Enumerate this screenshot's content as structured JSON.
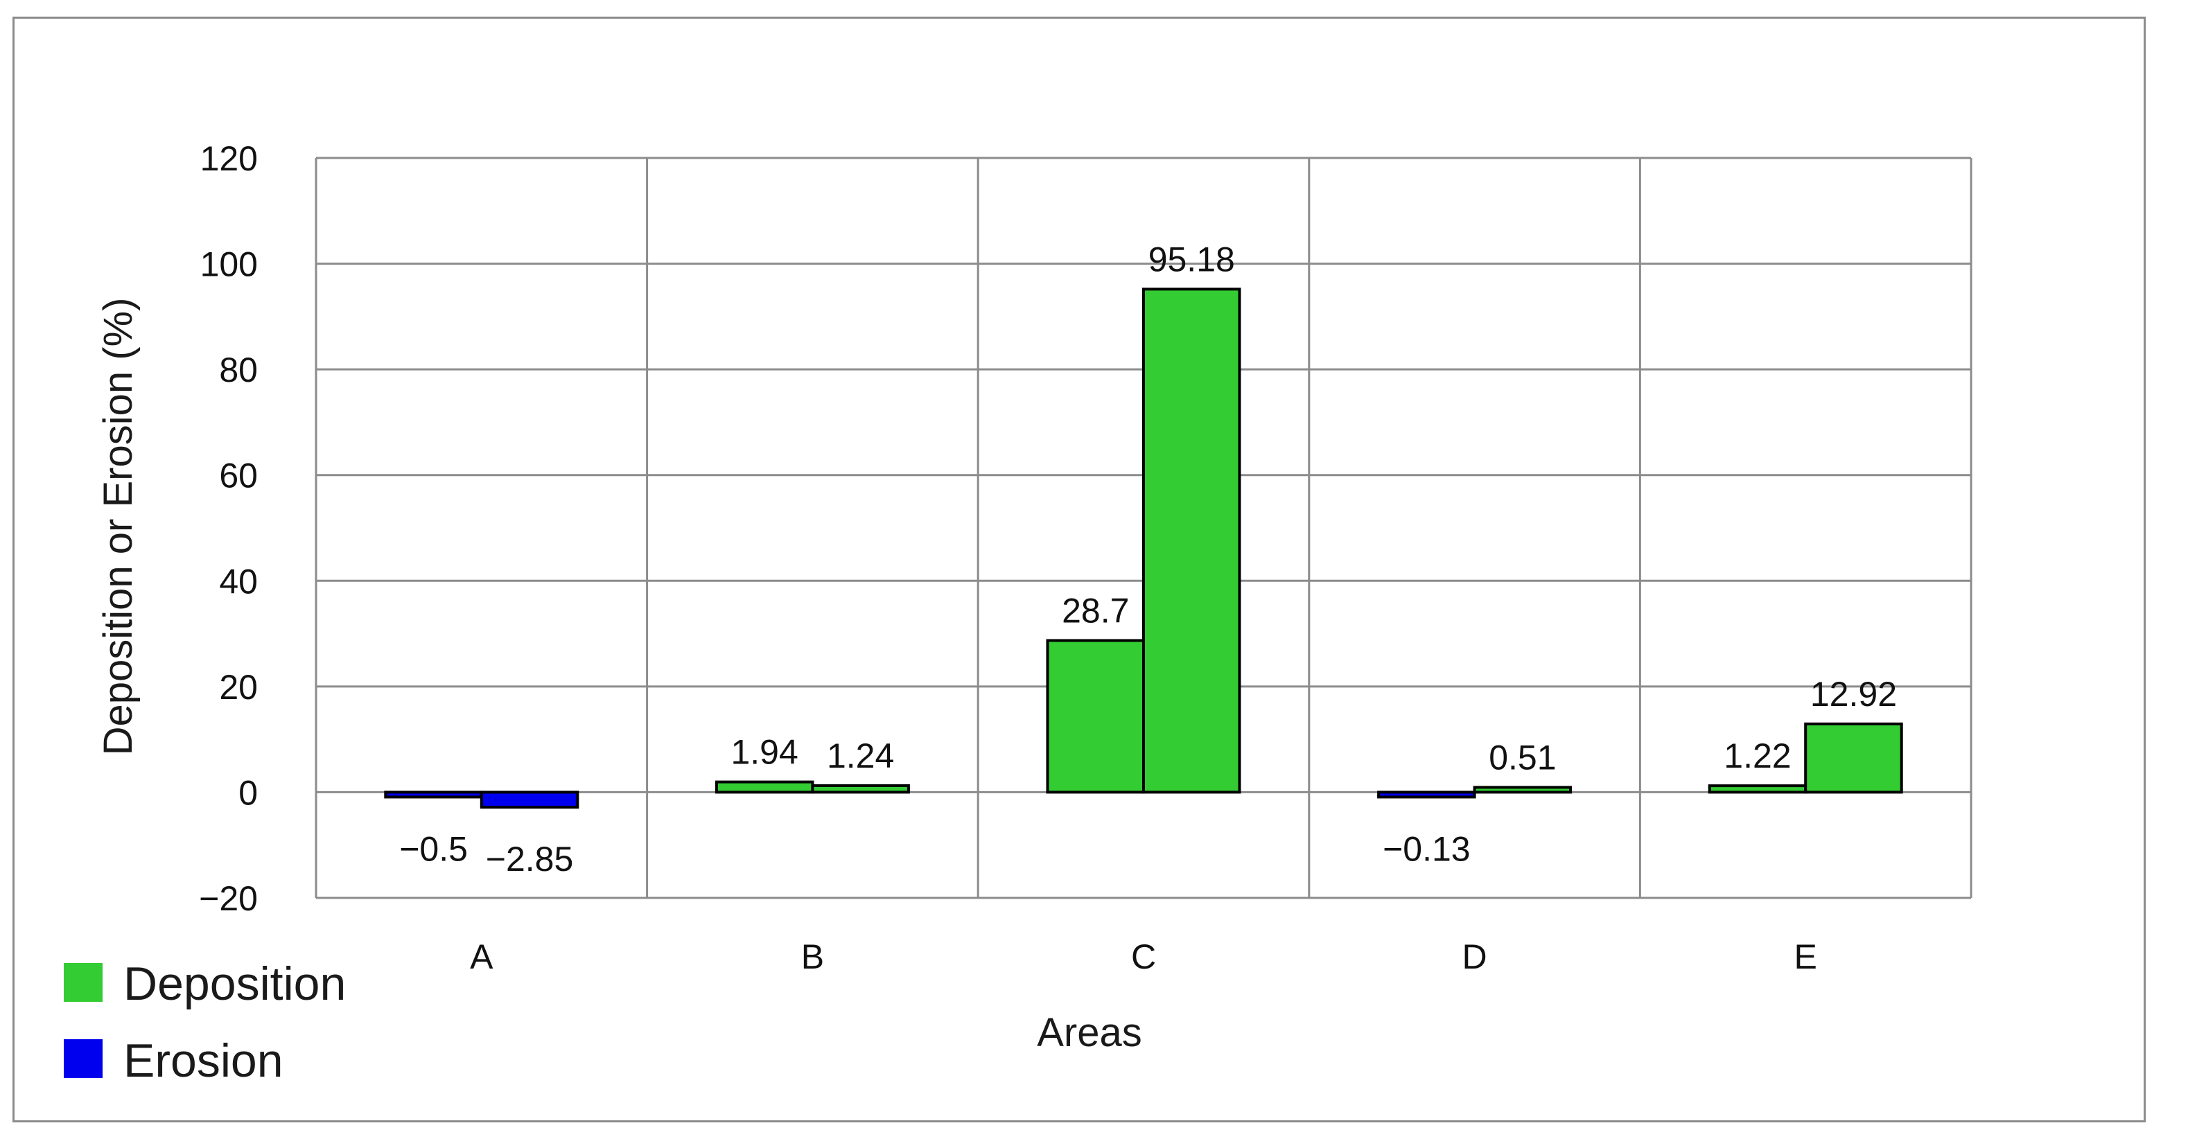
{
  "chart_data": {
    "type": "bar",
    "title": "",
    "xlabel": "Areas",
    "ylabel": "Deposition or Erosion (%)",
    "categories": [
      "A",
      "B",
      "C",
      "D",
      "E"
    ],
    "ylim": [
      -20,
      120
    ],
    "yticks": [
      -20,
      0,
      20,
      40,
      60,
      80,
      100,
      120
    ],
    "ytick_labels": [
      "−20",
      "0",
      "20",
      "40",
      "60",
      "80",
      "100",
      "120"
    ],
    "grid": true,
    "legend_placement": "bottom-left",
    "series": [
      {
        "values": [
          -0.5,
          1.94,
          28.7,
          -0.13,
          1.22
        ],
        "labels": [
          "−0.5",
          "1.94",
          "28.7",
          "−0.13",
          "1.22"
        ]
      },
      {
        "values": [
          -2.85,
          1.24,
          95.18,
          0.51,
          12.92
        ],
        "labels": [
          "−2.85",
          "1.24",
          "95.18",
          "0.51",
          "12.92"
        ]
      }
    ],
    "legend": [
      {
        "label": "Deposition",
        "color": "#33cc33"
      },
      {
        "label": "Erosion",
        "color": "#0000ee"
      }
    ],
    "colors": {
      "positive": "#33cc33",
      "negative": "#0000ee",
      "grid": "#8c8c8c",
      "bar_edge": "#000000"
    }
  }
}
